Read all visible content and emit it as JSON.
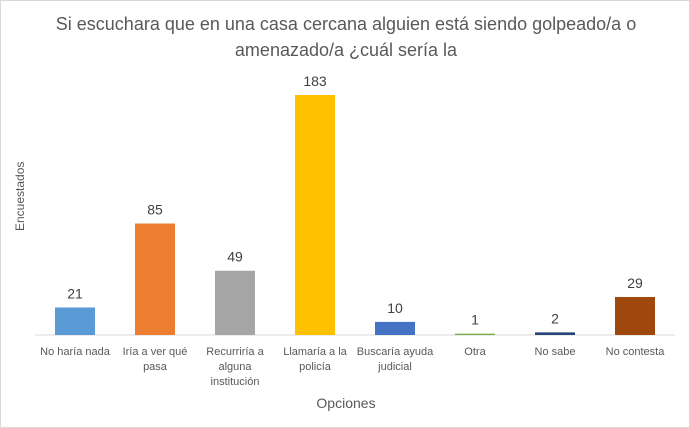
{
  "chart_data": {
    "type": "bar",
    "title": "Si escuchara que en una casa cercana alguien está siendo golpeado/a o amenazado/a ¿cuál sería la",
    "xlabel": "Opciones",
    "ylabel": "Encuestados",
    "ylim": [
      0,
      183
    ],
    "grid": false,
    "legend": "none",
    "categories": [
      [
        "No haría nada"
      ],
      [
        "Iría a ver qué",
        "pasa"
      ],
      [
        "Recurriría a",
        "alguna",
        "institución"
      ],
      [
        "Llamaría a la",
        "policía"
      ],
      [
        "Buscaría ayuda",
        "judicial"
      ],
      [
        "Otra"
      ],
      [
        "No sabe"
      ],
      [
        "No contesta"
      ]
    ],
    "values": [
      21,
      85,
      49,
      183,
      10,
      1,
      2,
      29
    ],
    "colors": [
      "#5b9bd5",
      "#ed7d31",
      "#a5a5a5",
      "#ffc000",
      "#4472c4",
      "#70ad47",
      "#264478",
      "#9e480e"
    ]
  }
}
